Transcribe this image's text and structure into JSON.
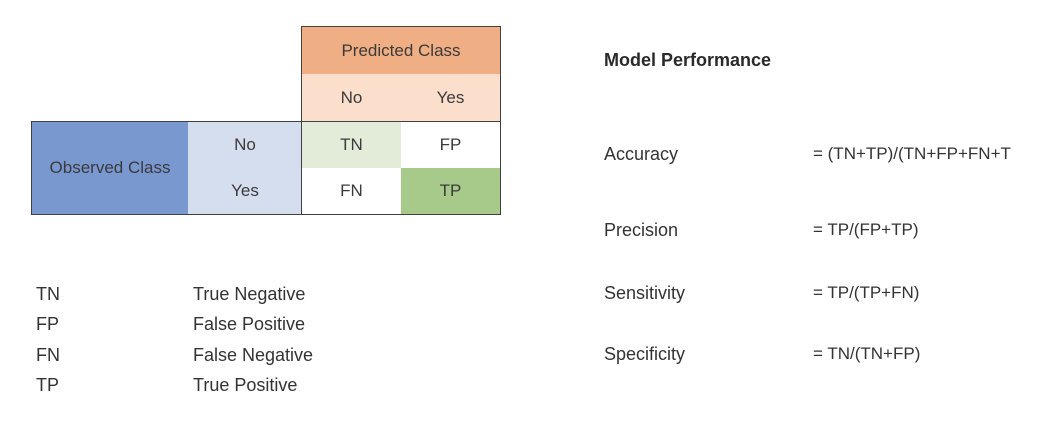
{
  "matrix": {
    "predicted_label": "Predicted Class",
    "predicted_no": "No",
    "predicted_yes": "Yes",
    "observed_label": "Observed Class",
    "observed_no": "No",
    "observed_yes": "Yes",
    "cells": {
      "tn": "TN",
      "fp": "FP",
      "fn": "FN",
      "tp": "TP"
    },
    "colors": {
      "predicted_header": "#f0ae84",
      "predicted_subheader": "#fbdfcc",
      "observed_header": "#7a98d0",
      "observed_subheader": "#d5deee",
      "tn_cell": "#e2ecd9",
      "tp_cell": "#a7c989"
    }
  },
  "legend": [
    {
      "abbr": "TN",
      "meaning": "True Negative"
    },
    {
      "abbr": "FP",
      "meaning": "False Positive"
    },
    {
      "abbr": "FN",
      "meaning": "False Negative"
    },
    {
      "abbr": "TP",
      "meaning": "True Positive"
    }
  ],
  "performance": {
    "title": "Model Performance",
    "metrics": [
      {
        "name": "Accuracy",
        "formula": "= (TN+TP)/(TN+FP+FN+T"
      },
      {
        "name": "Precision",
        "formula": "= TP/(FP+TP)"
      },
      {
        "name": "Sensitivity",
        "formula": "= TP/(TP+FN)"
      },
      {
        "name": "Specificity",
        "formula": "= TN/(TN+FP)"
      }
    ]
  }
}
